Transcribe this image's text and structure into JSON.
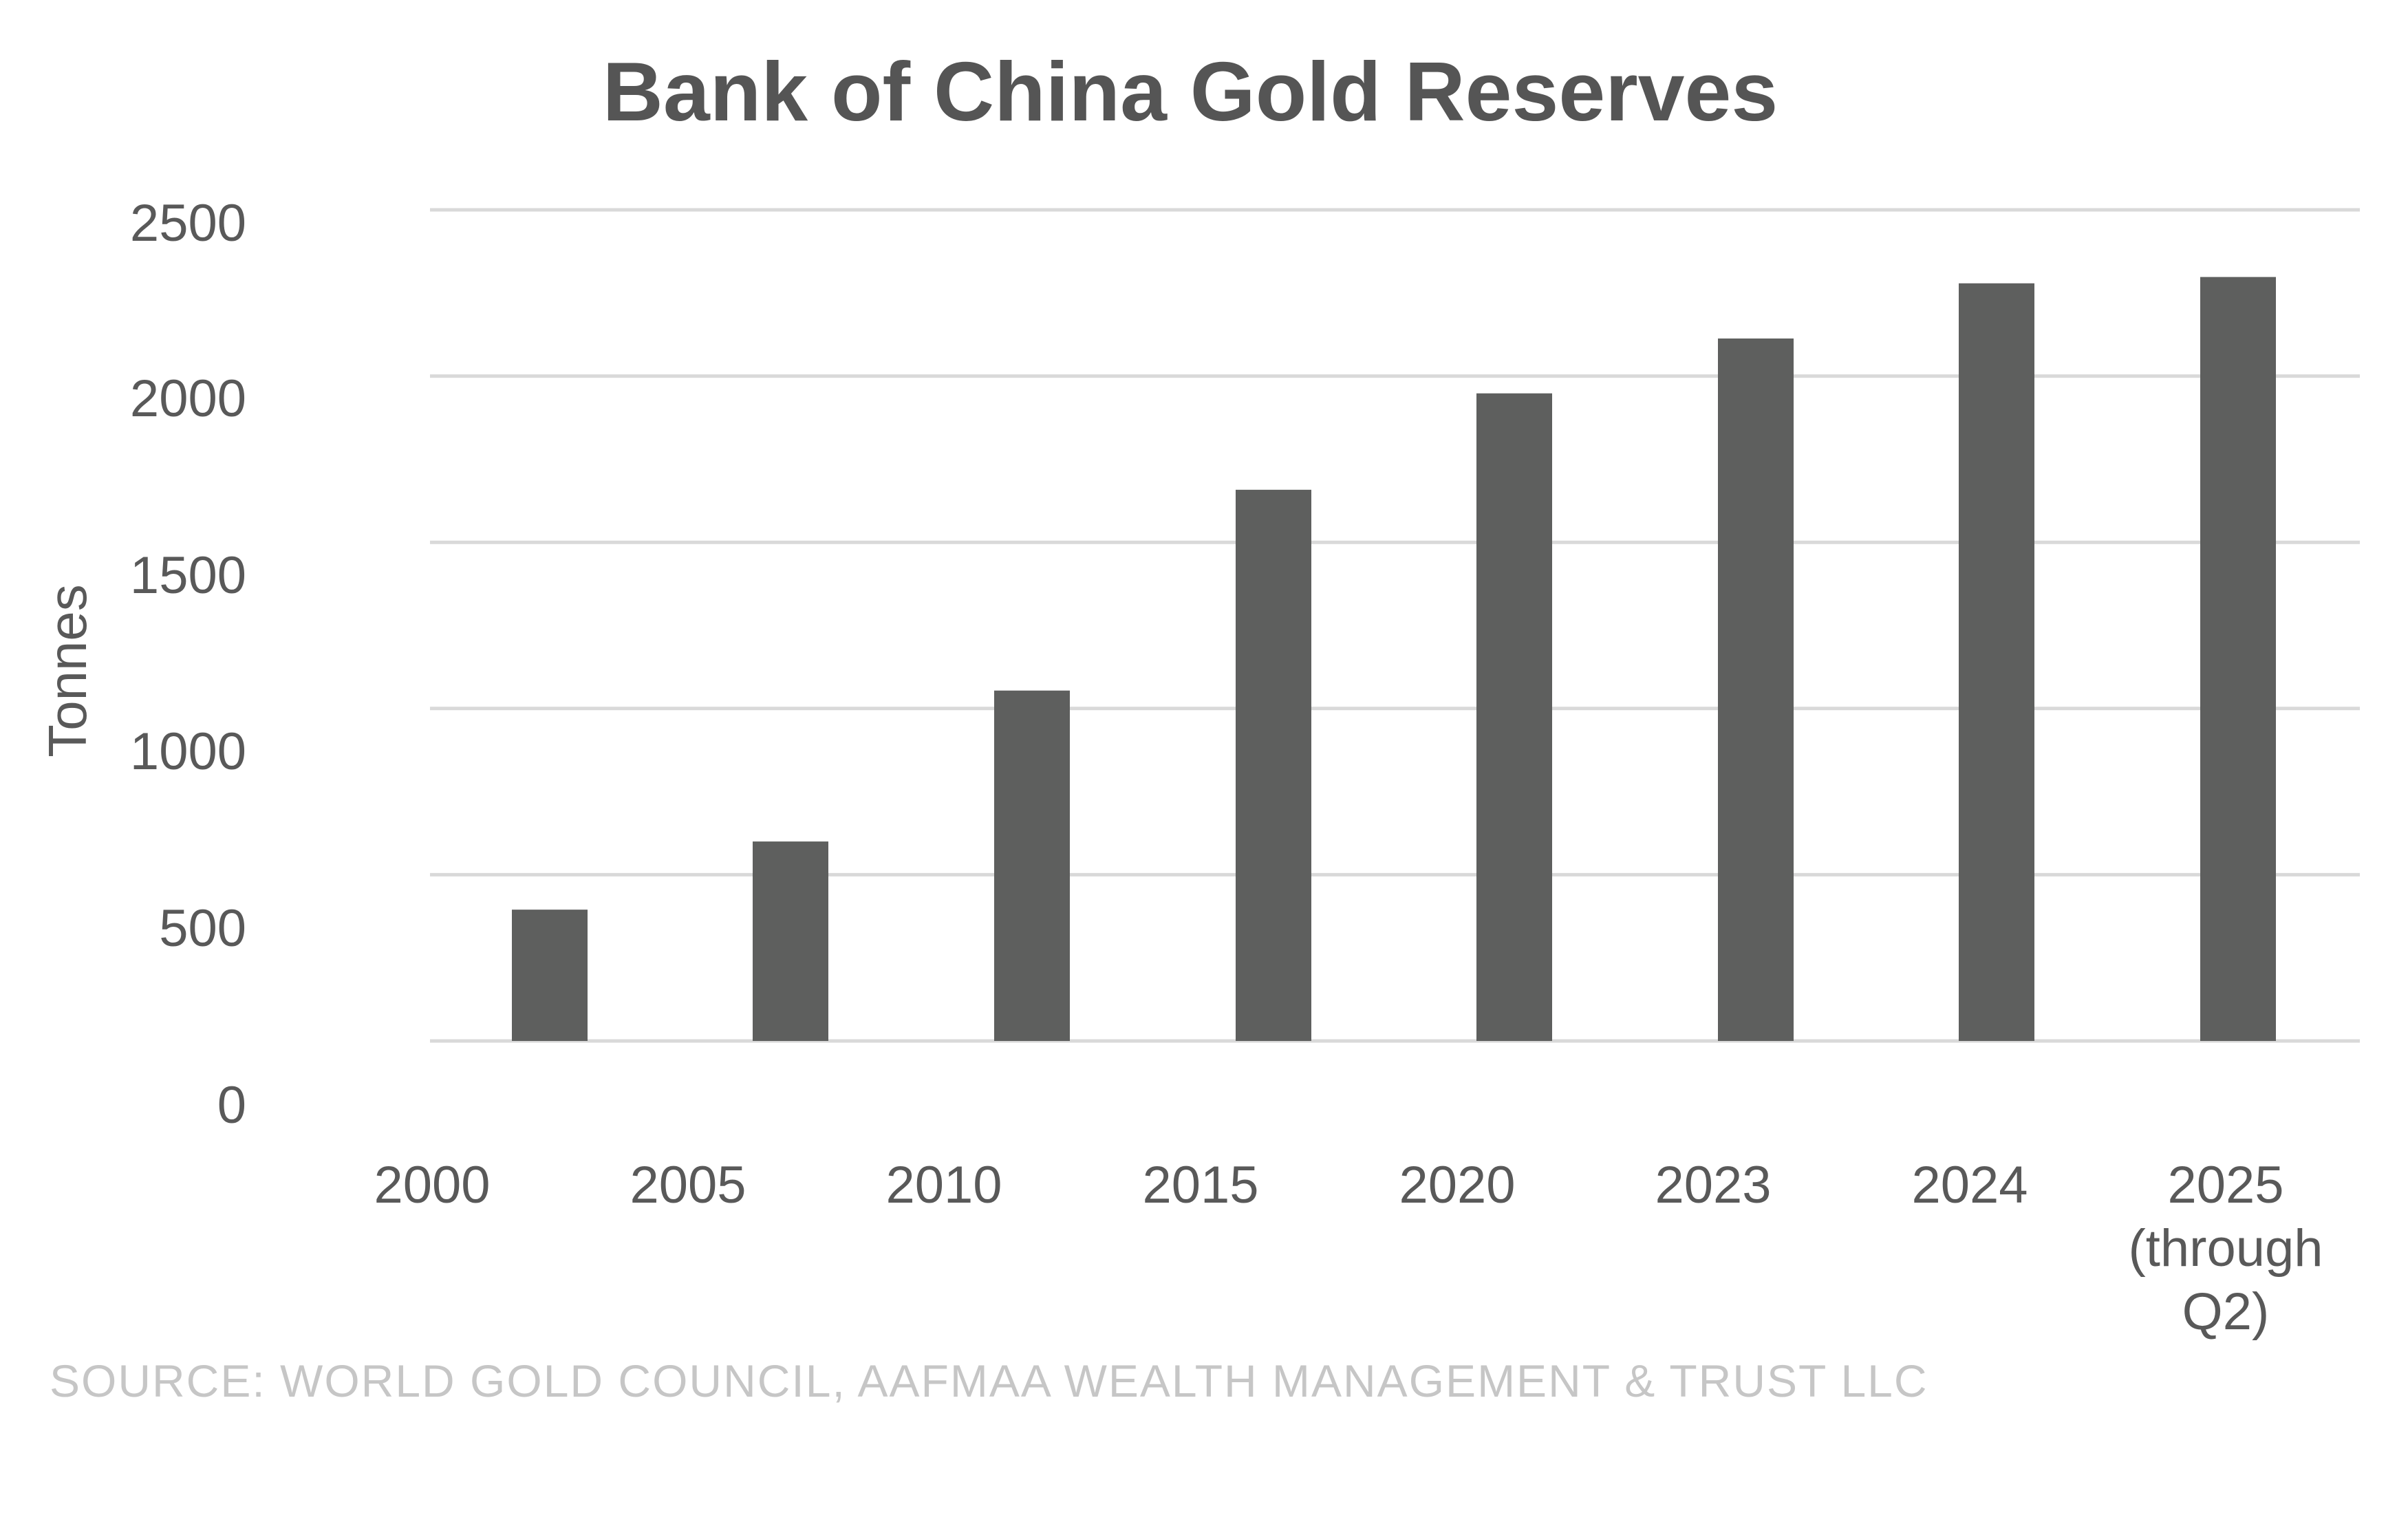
{
  "chart_data": {
    "type": "bar",
    "title": "Bank of China Gold Reserves",
    "xlabel": "",
    "ylabel": "Tonnes",
    "categories": [
      "2000",
      "2005",
      "2010",
      "2015",
      "2020",
      "2023",
      "2024",
      "2025 (through Q2)"
    ],
    "category_lines": [
      [
        "2000"
      ],
      [
        "2005"
      ],
      [
        "2010"
      ],
      [
        "2015"
      ],
      [
        "2020"
      ],
      [
        "2023"
      ],
      [
        "2024"
      ],
      [
        "2025",
        "(through",
        "Q2)"
      ]
    ],
    "values": [
      395,
      600,
      1054,
      1658,
      1948,
      2113,
      2279,
      2298
    ],
    "y_ticks": [
      "2500",
      "2000",
      "1500",
      "1000",
      "500",
      "0"
    ],
    "ylim": [
      0,
      2500
    ],
    "grid": true,
    "bar_color": "#5e5f5e",
    "grid_color": "#d9d9d9",
    "source": "SOURCE: WORLD GOLD COUNCIL, AAFMAA WEALTH MANAGEMENT & TRUST LLC"
  }
}
